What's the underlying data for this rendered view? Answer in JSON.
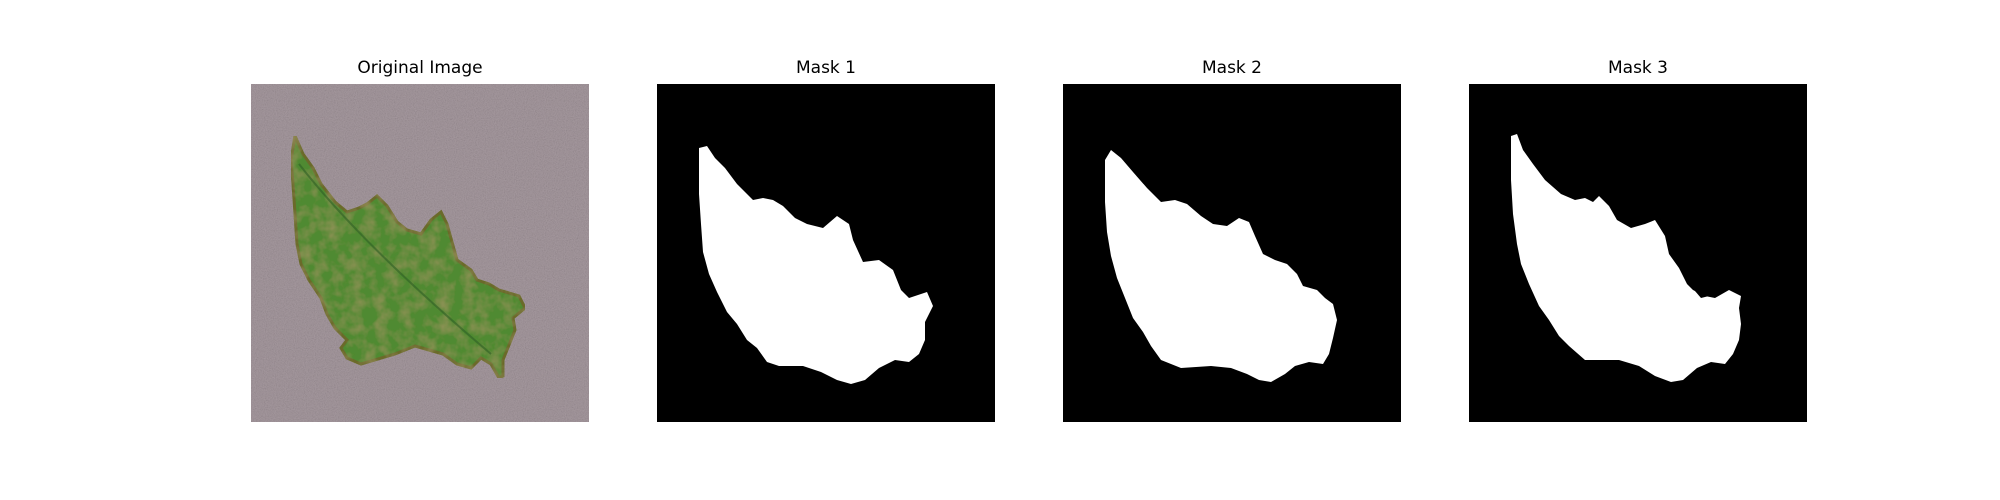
{
  "figure": {
    "panels": [
      {
        "title": "Original Image",
        "content_icon": "leaf-photo"
      },
      {
        "title": "Mask 1",
        "content_icon": "binary-mask"
      },
      {
        "title": "Mask 2",
        "content_icon": "binary-mask"
      },
      {
        "title": "Mask 3",
        "content_icon": "binary-mask"
      }
    ],
    "colors": {
      "background": "#ffffff",
      "mask_background": "#000000",
      "mask_foreground": "#ffffff",
      "leaf_green": "#4f8a33",
      "leaf_dark": "#2f5f24",
      "leaf_spot": "#7a5a2a",
      "surface_gray": "#9b8f95"
    }
  }
}
